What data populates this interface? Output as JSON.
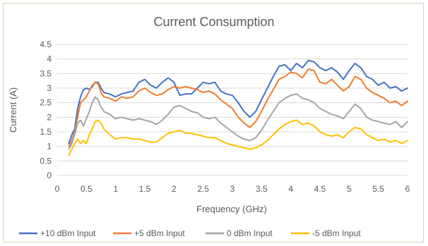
{
  "chart_data": {
    "type": "line",
    "title": "Current Consumption",
    "xlabel": "Frequency (GHz)",
    "ylabel": "Current (A)",
    "xlim": [
      0,
      6
    ],
    "ylim": [
      0,
      4.5
    ],
    "x_ticks": [
      "0",
      "0.5",
      "1",
      "1.5",
      "2",
      "2.5",
      "3",
      "3.5",
      "4",
      "4.5",
      "5",
      "5.5",
      "6"
    ],
    "y_ticks": [
      "0",
      "0.5",
      "1",
      "1.5",
      "2",
      "2.5",
      "3",
      "3.5",
      "4",
      "4.5"
    ],
    "grid": true,
    "legend_position": "bottom",
    "series": [
      {
        "name": "+10 dBm Input",
        "color": "#4472c4",
        "x": [
          0.2,
          0.25,
          0.3,
          0.35,
          0.4,
          0.45,
          0.5,
          0.55,
          0.6,
          0.65,
          0.7,
          0.75,
          0.8,
          0.9,
          1.0,
          1.1,
          1.2,
          1.3,
          1.4,
          1.5,
          1.6,
          1.7,
          1.8,
          1.9,
          2.0,
          2.1,
          2.2,
          2.3,
          2.4,
          2.5,
          2.6,
          2.7,
          2.8,
          2.9,
          3.0,
          3.1,
          3.2,
          3.3,
          3.4,
          3.5,
          3.6,
          3.7,
          3.8,
          3.9,
          4.0,
          4.1,
          4.2,
          4.3,
          4.4,
          4.5,
          4.6,
          4.7,
          4.8,
          4.9,
          5.0,
          5.1,
          5.2,
          5.3,
          5.4,
          5.5,
          5.6,
          5.7,
          5.8,
          5.9,
          6.0
        ],
        "values": [
          1.1,
          1.4,
          1.6,
          2.3,
          2.7,
          2.95,
          3.0,
          2.95,
          3.05,
          3.2,
          3.2,
          3.0,
          2.85,
          2.8,
          2.7,
          2.8,
          2.85,
          2.9,
          3.2,
          3.3,
          3.1,
          3.0,
          3.2,
          3.35,
          3.2,
          2.75,
          2.8,
          2.8,
          3.0,
          3.2,
          3.15,
          3.2,
          2.9,
          2.8,
          2.75,
          2.5,
          2.2,
          2.0,
          2.2,
          2.6,
          3.0,
          3.4,
          3.75,
          3.8,
          3.6,
          3.85,
          3.7,
          3.95,
          3.9,
          3.7,
          3.6,
          3.7,
          3.55,
          3.3,
          3.6,
          3.85,
          3.7,
          3.4,
          3.3,
          3.1,
          3.2,
          3.0,
          3.05,
          2.9,
          3.0
        ]
      },
      {
        "name": "+5 dBm Input",
        "color": "#ed7d31",
        "x": [
          0.2,
          0.25,
          0.3,
          0.35,
          0.4,
          0.45,
          0.5,
          0.55,
          0.6,
          0.65,
          0.7,
          0.75,
          0.8,
          0.9,
          1.0,
          1.1,
          1.2,
          1.3,
          1.4,
          1.5,
          1.6,
          1.7,
          1.8,
          1.9,
          2.0,
          2.1,
          2.2,
          2.3,
          2.4,
          2.5,
          2.6,
          2.7,
          2.8,
          2.9,
          3.0,
          3.1,
          3.2,
          3.3,
          3.4,
          3.5,
          3.6,
          3.7,
          3.8,
          3.9,
          4.0,
          4.1,
          4.2,
          4.3,
          4.4,
          4.5,
          4.6,
          4.7,
          4.8,
          4.9,
          5.0,
          5.1,
          5.2,
          5.3,
          5.4,
          5.5,
          5.6,
          5.7,
          5.8,
          5.9,
          6.0
        ],
        "values": [
          1.0,
          1.2,
          1.5,
          2.0,
          2.5,
          2.6,
          2.7,
          2.9,
          3.1,
          3.2,
          3.15,
          2.85,
          2.7,
          2.65,
          2.55,
          2.7,
          2.65,
          2.7,
          2.9,
          3.0,
          2.85,
          2.75,
          2.8,
          2.95,
          3.05,
          3.0,
          3.05,
          3.0,
          2.95,
          2.85,
          2.9,
          2.8,
          2.6,
          2.45,
          2.3,
          2.0,
          1.8,
          1.65,
          1.85,
          2.2,
          2.6,
          2.95,
          3.3,
          3.4,
          3.55,
          3.5,
          3.35,
          3.65,
          3.6,
          3.2,
          3.15,
          3.3,
          3.1,
          2.9,
          3.05,
          3.4,
          3.3,
          3.0,
          2.85,
          2.75,
          2.65,
          2.5,
          2.55,
          2.4,
          2.55
        ]
      },
      {
        "name": "0 dBm Input",
        "color": "#a5a5a5",
        "x": [
          0.2,
          0.25,
          0.3,
          0.35,
          0.4,
          0.45,
          0.5,
          0.55,
          0.6,
          0.65,
          0.7,
          0.75,
          0.8,
          0.9,
          1.0,
          1.1,
          1.2,
          1.3,
          1.4,
          1.5,
          1.6,
          1.7,
          1.8,
          1.9,
          2.0,
          2.1,
          2.2,
          2.3,
          2.4,
          2.5,
          2.6,
          2.7,
          2.8,
          2.9,
          3.0,
          3.1,
          3.2,
          3.3,
          3.4,
          3.5,
          3.6,
          3.7,
          3.8,
          3.9,
          4.0,
          4.1,
          4.2,
          4.3,
          4.4,
          4.5,
          4.6,
          4.7,
          4.8,
          4.9,
          5.0,
          5.1,
          5.2,
          5.3,
          5.4,
          5.5,
          5.6,
          5.7,
          5.8,
          5.9,
          6.0
        ],
        "values": [
          0.9,
          1.1,
          1.4,
          1.8,
          1.9,
          1.7,
          1.95,
          2.2,
          2.5,
          2.7,
          2.6,
          2.35,
          2.2,
          2.1,
          1.95,
          2.0,
          1.95,
          1.9,
          1.95,
          1.9,
          1.85,
          1.75,
          1.9,
          2.1,
          2.35,
          2.4,
          2.3,
          2.2,
          2.15,
          2.0,
          1.95,
          2.0,
          1.8,
          1.65,
          1.5,
          1.35,
          1.25,
          1.2,
          1.3,
          1.55,
          1.9,
          2.2,
          2.5,
          2.65,
          2.75,
          2.8,
          2.65,
          2.6,
          2.5,
          2.3,
          2.2,
          2.1,
          2.05,
          1.95,
          2.2,
          2.45,
          2.3,
          2.0,
          1.9,
          1.85,
          1.8,
          1.75,
          1.85,
          1.65,
          1.85
        ]
      },
      {
        "name": "-5 dBm Input",
        "color": "#ffc000",
        "x": [
          0.2,
          0.25,
          0.3,
          0.35,
          0.4,
          0.45,
          0.5,
          0.55,
          0.6,
          0.65,
          0.7,
          0.75,
          0.8,
          0.9,
          1.0,
          1.1,
          1.2,
          1.3,
          1.4,
          1.5,
          1.6,
          1.7,
          1.8,
          1.9,
          2.0,
          2.1,
          2.2,
          2.3,
          2.4,
          2.5,
          2.6,
          2.7,
          2.8,
          2.9,
          3.0,
          3.1,
          3.2,
          3.3,
          3.4,
          3.5,
          3.6,
          3.7,
          3.8,
          3.9,
          4.0,
          4.1,
          4.2,
          4.3,
          4.4,
          4.5,
          4.6,
          4.7,
          4.8,
          4.9,
          5.0,
          5.1,
          5.2,
          5.3,
          5.4,
          5.5,
          5.6,
          5.7,
          5.8,
          5.9,
          6.0
        ],
        "values": [
          0.7,
          0.9,
          1.1,
          1.25,
          1.1,
          1.2,
          1.1,
          1.4,
          1.6,
          1.85,
          1.9,
          1.8,
          1.6,
          1.4,
          1.25,
          1.3,
          1.3,
          1.25,
          1.25,
          1.2,
          1.15,
          1.15,
          1.3,
          1.45,
          1.5,
          1.55,
          1.45,
          1.45,
          1.4,
          1.35,
          1.3,
          1.3,
          1.2,
          1.1,
          1.05,
          1.0,
          0.95,
          0.9,
          0.95,
          1.05,
          1.2,
          1.4,
          1.6,
          1.75,
          1.85,
          1.9,
          1.75,
          1.8,
          1.7,
          1.5,
          1.4,
          1.35,
          1.4,
          1.3,
          1.5,
          1.65,
          1.6,
          1.4,
          1.3,
          1.2,
          1.25,
          1.15,
          1.2,
          1.1,
          1.2
        ]
      }
    ]
  }
}
